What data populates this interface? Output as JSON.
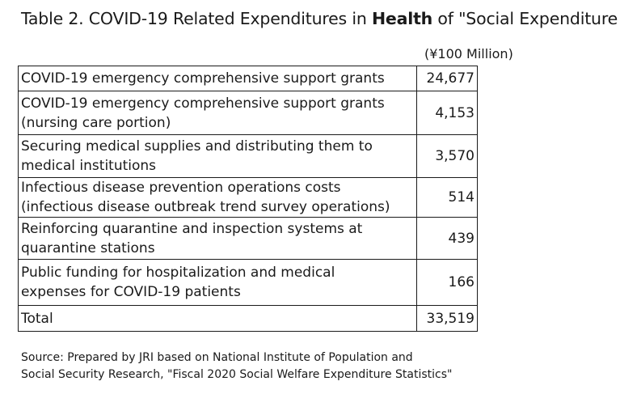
{
  "title": {
    "prefix": "Table 2. COVID-19 Related Expenditures in ",
    "bold": "Health",
    "suffix": " of \"Social Expenditure"
  },
  "unit": "(¥100 Million)",
  "rows": [
    {
      "lines": [
        "COVID-19 emergency comprehensive support grants"
      ],
      "value": "24,677"
    },
    {
      "lines": [
        "COVID-19 emergency comprehensive support grants",
        "(nursing care portion)"
      ],
      "value": "4,153"
    },
    {
      "lines": [
        "Securing medical supplies and distributing them to",
        "medical institutions"
      ],
      "value": "3,570"
    },
    {
      "lines": [
        "Infectious disease prevention operations costs",
        "(infectious disease outbreak trend survey operations)"
      ],
      "value": "514"
    },
    {
      "lines": [
        "Reinforcing quarantine and inspection systems at",
        "quarantine stations"
      ],
      "value": "439"
    },
    {
      "lines": [
        "Public funding for hospitalization and medical",
        "expenses for COVID-19 patients"
      ],
      "value": "166"
    }
  ],
  "total": {
    "label": "Total",
    "value": "33,519"
  },
  "source": {
    "line1": "Source: Prepared by JRI based on National Institute of Population and",
    "line2": "Social Security Research, \"Fiscal 2020 Social Welfare Expenditure Statistics\""
  }
}
